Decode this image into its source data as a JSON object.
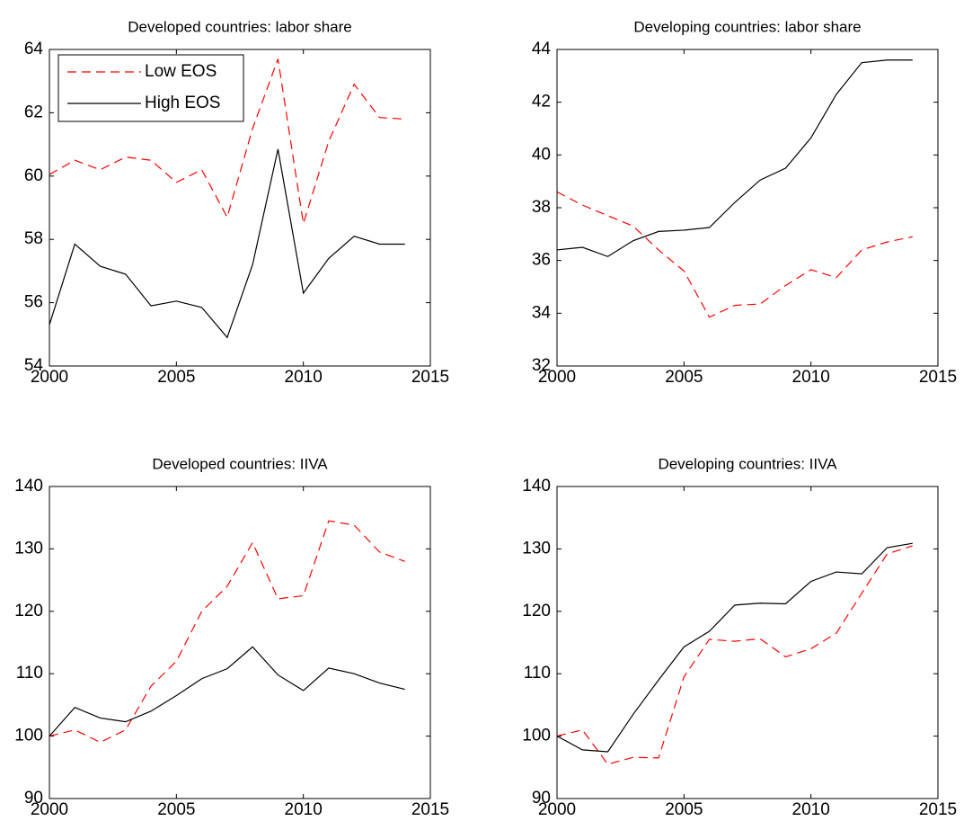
{
  "chart_data": [
    {
      "type": "line",
      "title": "Developed countries: labor share",
      "x": [
        2000,
        2001,
        2002,
        2003,
        2004,
        2005,
        2006,
        2007,
        2008,
        2009,
        2010,
        2011,
        2012,
        2013,
        2014
      ],
      "xlim": [
        2000,
        2015
      ],
      "xticks": [
        2000,
        2005,
        2010,
        2015
      ],
      "ylim": [
        54,
        64
      ],
      "yticks": [
        54,
        56,
        58,
        60,
        62,
        64
      ],
      "legend": "upper left",
      "series": [
        {
          "name": "Low EOS",
          "color": "#ff0000",
          "dashed": true,
          "values": [
            60.05,
            60.5,
            60.2,
            60.6,
            60.5,
            59.8,
            60.2,
            58.7,
            61.5,
            63.7,
            58.5,
            61.1,
            62.9,
            61.85,
            61.8
          ]
        },
        {
          "name": "High EOS",
          "color": "#000000",
          "dashed": false,
          "values": [
            55.3,
            57.85,
            57.15,
            56.9,
            55.9,
            56.05,
            55.85,
            54.9,
            57.2,
            60.85,
            56.3,
            57.4,
            58.1,
            57.85,
            57.85
          ]
        }
      ]
    },
    {
      "type": "line",
      "title": "Developing countries: labor share",
      "x": [
        2000,
        2001,
        2002,
        2003,
        2004,
        2005,
        2006,
        2007,
        2008,
        2009,
        2010,
        2011,
        2012,
        2013,
        2014
      ],
      "xlim": [
        2000,
        2015
      ],
      "xticks": [
        2000,
        2005,
        2010,
        2015
      ],
      "ylim": [
        32,
        44
      ],
      "yticks": [
        32,
        34,
        36,
        38,
        40,
        42,
        44
      ],
      "series": [
        {
          "color": "#ff0000",
          "dashed": true,
          "values": [
            38.6,
            38.1,
            37.7,
            37.3,
            36.4,
            35.6,
            33.85,
            34.3,
            34.35,
            35.05,
            35.65,
            35.35,
            36.4,
            36.7,
            36.9
          ]
        },
        {
          "color": "#000000",
          "dashed": false,
          "values": [
            36.4,
            36.5,
            36.15,
            36.75,
            37.1,
            37.15,
            37.25,
            38.2,
            39.05,
            39.5,
            40.65,
            42.3,
            43.5,
            43.6,
            43.6
          ]
        }
      ]
    },
    {
      "type": "line",
      "title": "Developed countries: IIVA",
      "x": [
        2000,
        2001,
        2002,
        2003,
        2004,
        2005,
        2006,
        2007,
        2008,
        2009,
        2010,
        2011,
        2012,
        2013,
        2014
      ],
      "xlim": [
        2000,
        2015
      ],
      "xticks": [
        2000,
        2005,
        2010,
        2015
      ],
      "ylim": [
        90,
        140
      ],
      "yticks": [
        90,
        100,
        110,
        120,
        130,
        140
      ],
      "series": [
        {
          "color": "#ff0000",
          "dashed": true,
          "values": [
            100,
            101,
            99,
            101,
            108,
            112,
            120,
            124,
            131,
            122,
            122.5,
            134.5,
            133.8,
            129.5,
            128
          ]
        },
        {
          "color": "#000000",
          "dashed": false,
          "values": [
            100,
            104.6,
            102.9,
            102.3,
            104,
            106.5,
            109.2,
            110.8,
            114.3,
            109.8,
            107.3,
            110.9,
            110,
            108.5,
            107.5
          ]
        }
      ]
    },
    {
      "type": "line",
      "title": "Developing countries: IIVA",
      "x": [
        2000,
        2001,
        2002,
        2003,
        2004,
        2005,
        2006,
        2007,
        2008,
        2009,
        2010,
        2011,
        2012,
        2013,
        2014
      ],
      "xlim": [
        2000,
        2015
      ],
      "xticks": [
        2000,
        2005,
        2010,
        2015
      ],
      "ylim": [
        90,
        140
      ],
      "yticks": [
        90,
        100,
        110,
        120,
        130,
        140
      ],
      "series": [
        {
          "color": "#ff0000",
          "dashed": true,
          "values": [
            100,
            101,
            95.5,
            96.6,
            96.5,
            109.5,
            115.5,
            115.2,
            115.6,
            112.7,
            114,
            116.5,
            122.9,
            129.2,
            130.5
          ]
        },
        {
          "color": "#000000",
          "dashed": false,
          "values": [
            100,
            97.8,
            97.5,
            103.5,
            109,
            114.3,
            116.8,
            121,
            121.3,
            121.2,
            124.8,
            126.3,
            126,
            130.2,
            130.9
          ]
        }
      ]
    }
  ]
}
